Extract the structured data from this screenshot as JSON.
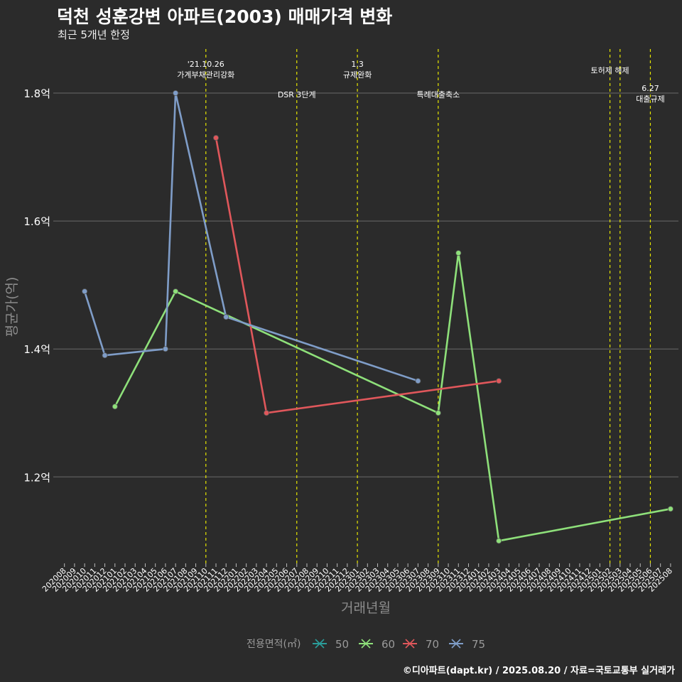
{
  "title": "덕천 성훈강변 아파트(2003) 매매가격 변화",
  "subtitle": "최근 5개년 한정",
  "footer": "©디아파트(dapt.kr) / 2025.08.20 / 자료=국토교통부 실거래가",
  "chart_data": {
    "type": "line",
    "xlabel": "거래년월",
    "ylabel": "평균가(억)",
    "x": [
      "202008",
      "202009",
      "202010",
      "202011",
      "202012",
      "202101",
      "202102",
      "202103",
      "202104",
      "202105",
      "202106",
      "202107",
      "202108",
      "202109",
      "202110",
      "202111",
      "202112",
      "202201",
      "202202",
      "202203",
      "202204",
      "202205",
      "202206",
      "202207",
      "202208",
      "202209",
      "202210",
      "202211",
      "202212",
      "202301",
      "202302",
      "202303",
      "202304",
      "202305",
      "202306",
      "202307",
      "202308",
      "202309",
      "202310",
      "202311",
      "202312",
      "202401",
      "202402",
      "202403",
      "202404",
      "202405",
      "202406",
      "202407",
      "202408",
      "202409",
      "202410",
      "202411",
      "202412",
      "202501",
      "202502",
      "202503",
      "202504",
      "202505",
      "202506",
      "202507",
      "202508"
    ],
    "y_ticks": [
      1.2,
      1.4,
      1.6,
      1.8
    ],
    "y_tick_labels": [
      "1.2억",
      "1.4억",
      "1.6억",
      "1.8억"
    ],
    "ylim": [
      1.065,
      1.875
    ],
    "grid": true,
    "legend": {
      "title": "전용면적(㎡)",
      "position": "bottom",
      "entries": [
        "50",
        "60",
        "70",
        "75"
      ]
    },
    "series": [
      {
        "name": "50",
        "color": "#2a9d9a",
        "points": []
      },
      {
        "name": "60",
        "color": "#8ee07a",
        "points": [
          [
            "202101",
            1.31
          ],
          [
            "202107",
            1.49
          ],
          [
            "202309",
            1.3
          ],
          [
            "202311",
            1.55
          ],
          [
            "202403",
            1.1
          ],
          [
            "202508",
            1.15
          ]
        ]
      },
      {
        "name": "70",
        "color": "#e0575b",
        "points": [
          [
            "202111",
            1.73
          ],
          [
            "202204",
            1.3
          ],
          [
            "202403",
            1.35
          ]
        ]
      },
      {
        "name": "75",
        "color": "#7f9dc8",
        "points": [
          [
            "202010",
            1.49
          ],
          [
            "202012",
            1.39
          ],
          [
            "202106",
            1.4
          ],
          [
            "202107",
            1.8
          ],
          [
            "202112",
            1.45
          ],
          [
            "202307",
            1.35
          ]
        ]
      }
    ],
    "event_lines": [
      {
        "x": "202110",
        "label": [
          "'21.10.26",
          "가계부채관리강화"
        ],
        "label_row": "top"
      },
      {
        "x": "202207",
        "label": [
          "DSR 3단계"
        ],
        "label_row": "low"
      },
      {
        "x": "202301",
        "label": [
          "1.3",
          "규제완화"
        ],
        "label_row": "top"
      },
      {
        "x": "202309",
        "label": [
          "특례대출축소"
        ],
        "label_row": "low"
      },
      {
        "x": "202502",
        "label": [
          "토허제 해제"
        ],
        "label_row": "mid"
      },
      {
        "x": "202503",
        "label": [],
        "label_row": "mid"
      },
      {
        "x": "202506",
        "label": [
          "6.27",
          "대출규제"
        ],
        "label_row": "right"
      }
    ],
    "event_line_color": "#e6e600"
  }
}
